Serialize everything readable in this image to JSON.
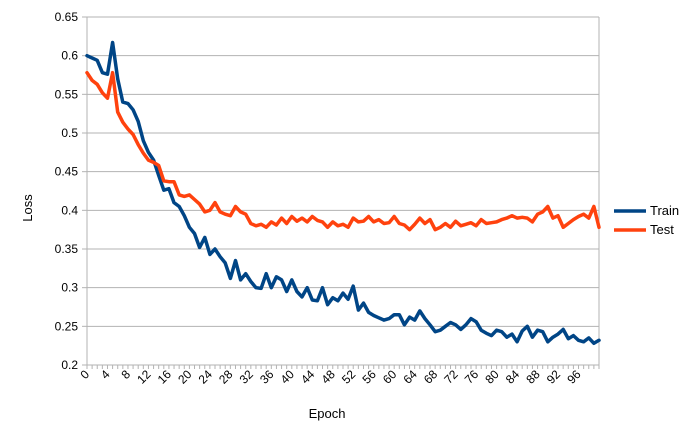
{
  "chart_data": {
    "type": "line",
    "title": "",
    "xlabel": "Epoch",
    "ylabel": "Loss",
    "xlim": [
      0,
      100
    ],
    "ylim": [
      0.2,
      0.65
    ],
    "y_ticks": [
      "0.2",
      "0.25",
      "0.3",
      "0.35",
      "0.4",
      "0.45",
      "0.5",
      "0.55",
      "0.6",
      "0.65"
    ],
    "x_ticks": [
      "0",
      "4",
      "8",
      "12",
      "16",
      "20",
      "24",
      "28",
      "32",
      "36",
      "40",
      "44",
      "48",
      "52",
      "56",
      "60",
      "64",
      "68",
      "72",
      "76",
      "80",
      "84",
      "88",
      "92",
      "96"
    ],
    "grid": "horizontal",
    "legend": "right",
    "x": [
      0,
      1,
      2,
      3,
      4,
      5,
      6,
      7,
      8,
      9,
      10,
      11,
      12,
      13,
      14,
      15,
      16,
      17,
      18,
      19,
      20,
      21,
      22,
      23,
      24,
      25,
      26,
      27,
      28,
      29,
      30,
      31,
      32,
      33,
      34,
      35,
      36,
      37,
      38,
      39,
      40,
      41,
      42,
      43,
      44,
      45,
      46,
      47,
      48,
      49,
      50,
      51,
      52,
      53,
      54,
      55,
      56,
      57,
      58,
      59,
      60,
      61,
      62,
      63,
      64,
      65,
      66,
      67,
      68,
      69,
      70,
      71,
      72,
      73,
      74,
      75,
      76,
      77,
      78,
      79,
      80,
      81,
      82,
      83,
      84,
      85,
      86,
      87,
      88,
      89,
      90,
      91,
      92,
      93,
      94,
      95,
      96,
      97,
      98,
      99,
      100
    ],
    "series": [
      {
        "name": "Train",
        "color": "#004586",
        "values": [
          0.6,
          0.597,
          0.594,
          0.578,
          0.576,
          0.617,
          0.57,
          0.54,
          0.538,
          0.53,
          0.515,
          0.49,
          0.475,
          0.465,
          0.445,
          0.426,
          0.428,
          0.41,
          0.405,
          0.393,
          0.378,
          0.37,
          0.352,
          0.365,
          0.343,
          0.35,
          0.34,
          0.332,
          0.312,
          0.335,
          0.31,
          0.318,
          0.308,
          0.3,
          0.299,
          0.318,
          0.3,
          0.314,
          0.31,
          0.295,
          0.31,
          0.295,
          0.288,
          0.3,
          0.284,
          0.283,
          0.3,
          0.278,
          0.287,
          0.283,
          0.293,
          0.285,
          0.302,
          0.271,
          0.28,
          0.268,
          0.264,
          0.261,
          0.258,
          0.26,
          0.265,
          0.265,
          0.252,
          0.262,
          0.258,
          0.27,
          0.26,
          0.252,
          0.243,
          0.245,
          0.25,
          0.255,
          0.252,
          0.246,
          0.252,
          0.26,
          0.256,
          0.245,
          0.241,
          0.238,
          0.245,
          0.243,
          0.236,
          0.24,
          0.23,
          0.244,
          0.25,
          0.236,
          0.245,
          0.243,
          0.23,
          0.236,
          0.24,
          0.246,
          0.234,
          0.238,
          0.232,
          0.23,
          0.235,
          0.228,
          0.232
        ]
      },
      {
        "name": "Test",
        "color": "#ff420e",
        "values": [
          0.578,
          0.568,
          0.563,
          0.552,
          0.545,
          0.578,
          0.527,
          0.514,
          0.505,
          0.498,
          0.485,
          0.474,
          0.465,
          0.462,
          0.458,
          0.438,
          0.437,
          0.437,
          0.42,
          0.418,
          0.42,
          0.414,
          0.408,
          0.398,
          0.4,
          0.41,
          0.398,
          0.395,
          0.393,
          0.405,
          0.398,
          0.395,
          0.383,
          0.38,
          0.382,
          0.378,
          0.385,
          0.381,
          0.39,
          0.383,
          0.392,
          0.386,
          0.39,
          0.385,
          0.392,
          0.387,
          0.385,
          0.378,
          0.385,
          0.38,
          0.382,
          0.378,
          0.39,
          0.385,
          0.386,
          0.392,
          0.385,
          0.388,
          0.383,
          0.384,
          0.392,
          0.383,
          0.381,
          0.375,
          0.382,
          0.39,
          0.383,
          0.388,
          0.375,
          0.378,
          0.383,
          0.378,
          0.386,
          0.38,
          0.382,
          0.384,
          0.38,
          0.388,
          0.383,
          0.384,
          0.385,
          0.388,
          0.39,
          0.393,
          0.39,
          0.391,
          0.39,
          0.385,
          0.395,
          0.398,
          0.405,
          0.39,
          0.393,
          0.378,
          0.383,
          0.388,
          0.392,
          0.395,
          0.39,
          0.405,
          0.378
        ]
      }
    ]
  }
}
